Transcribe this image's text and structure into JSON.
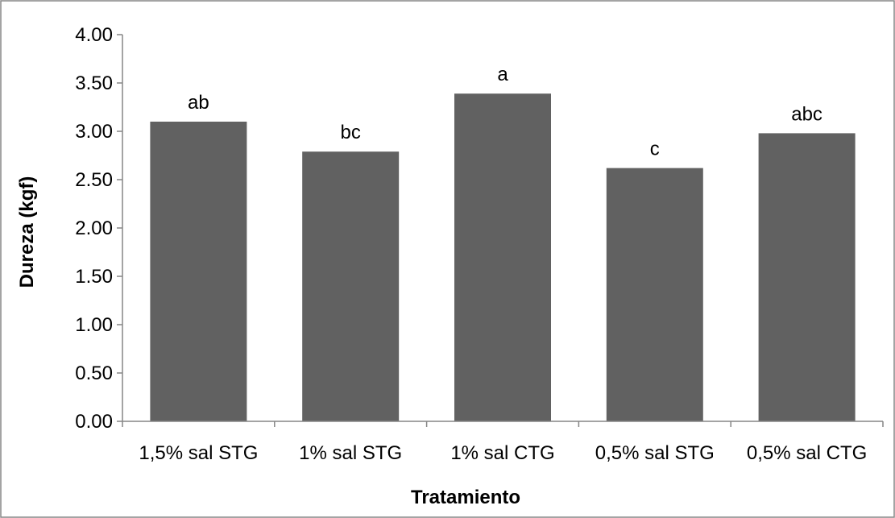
{
  "chart_data": {
    "type": "bar",
    "title": "",
    "xlabel": "Tratamiento",
    "ylabel": "Dureza (kgf)",
    "categories": [
      "1,5% sal STG",
      "1% sal STG",
      "1% sal CTG",
      "0,5% sal STG",
      "0,5% sal CTG"
    ],
    "values": [
      3.1,
      2.79,
      3.39,
      2.62,
      2.98
    ],
    "data_labels": [
      "ab",
      "bc",
      "a",
      "c",
      "abc"
    ],
    "ylim": [
      0,
      4
    ],
    "ytick_values": [
      0,
      0.5,
      1,
      1.5,
      2,
      2.5,
      3,
      3.5,
      4
    ],
    "ytick_labels": [
      "0.00",
      "0.50",
      "1.00",
      "1.50",
      "2.00",
      "2.50",
      "3.00",
      "3.50",
      "4.00"
    ],
    "grid": false,
    "legend": "none",
    "bar_color": "#616161",
    "axis_color": "#868686",
    "border_color": "#868686"
  }
}
